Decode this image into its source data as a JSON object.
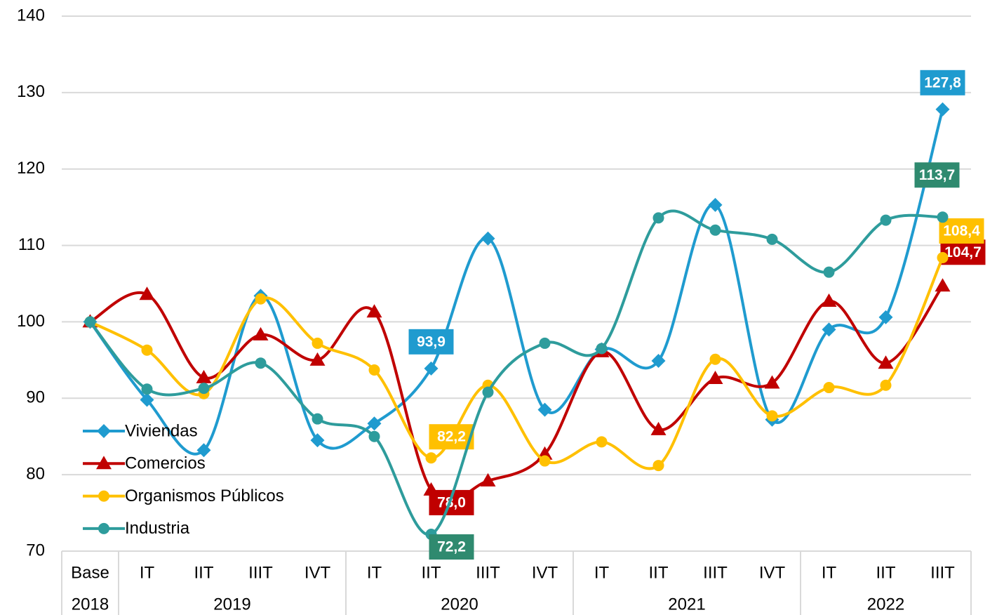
{
  "chart_data": {
    "type": "line",
    "categories": [
      "Base",
      "IT",
      "IIT",
      "IIIT",
      "IVT",
      "IT",
      "IIT",
      "IIIT",
      "IVT",
      "IT",
      "IIT",
      "IIIT",
      "IVT",
      "IT",
      "IIT",
      "IIIT"
    ],
    "groups": [
      {
        "label": "2018",
        "count": 1
      },
      {
        "label": "2019",
        "count": 4
      },
      {
        "label": "2020",
        "count": 4
      },
      {
        "label": "2021",
        "count": 4
      },
      {
        "label": "2022",
        "count": 3
      }
    ],
    "ylim": [
      70,
      140
    ],
    "yticks": [
      70,
      80,
      90,
      100,
      110,
      120,
      130,
      140
    ],
    "grid": true,
    "legend": "left",
    "series": [
      {
        "name": "Viviendas",
        "color": "#1f9bcf",
        "marker": "diamond",
        "values": [
          100,
          89.8,
          83.2,
          103.4,
          84.5,
          86.7,
          93.9,
          110.9,
          88.5,
          96.4,
          94.9,
          115.3,
          87.2,
          99.0,
          100.6,
          127.8
        ],
        "value_labels": [
          null,
          null,
          null,
          null,
          null,
          null,
          "93,9",
          null,
          null,
          null,
          null,
          null,
          null,
          null,
          null,
          "127,8"
        ]
      },
      {
        "name": "Comercios",
        "color": "#c00000",
        "marker": "triangle",
        "values": [
          100,
          103.6,
          92.7,
          98.3,
          95.0,
          101.3,
          78.0,
          79.2,
          82.7,
          96.1,
          85.9,
          92.6,
          92.0,
          102.7,
          94.6,
          104.7
        ],
        "value_labels": [
          null,
          null,
          null,
          null,
          null,
          null,
          "78,0",
          null,
          null,
          null,
          null,
          null,
          null,
          null,
          null,
          "104,7"
        ]
      },
      {
        "name": "Organismos Públicos",
        "color": "#ffc000",
        "marker": "circle",
        "values": [
          100,
          96.3,
          90.6,
          103.0,
          97.2,
          93.7,
          82.2,
          91.7,
          81.8,
          84.3,
          81.2,
          95.1,
          87.7,
          91.4,
          91.7,
          108.4
        ],
        "value_labels": [
          null,
          null,
          null,
          null,
          null,
          null,
          "82,2",
          null,
          null,
          null,
          null,
          null,
          null,
          null,
          null,
          "108,4"
        ]
      },
      {
        "name": "Industria",
        "color": "#2e9c9c",
        "marker": "circle",
        "values": [
          100,
          91.2,
          91.3,
          94.6,
          87.3,
          85.0,
          72.2,
          90.8,
          97.2,
          96.5,
          113.6,
          112.0,
          110.8,
          106.5,
          113.3,
          113.7
        ],
        "value_labels": [
          null,
          null,
          null,
          null,
          null,
          null,
          "72,2",
          null,
          null,
          null,
          null,
          null,
          null,
          null,
          null,
          "113,7"
        ]
      }
    ]
  }
}
